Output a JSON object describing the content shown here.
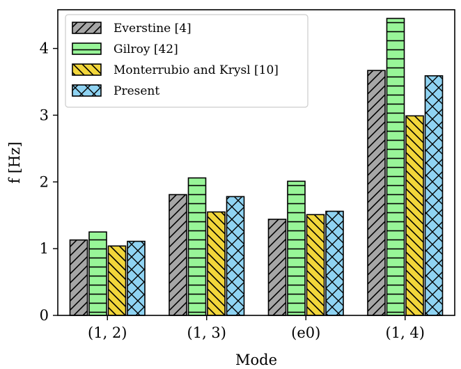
{
  "chart_data": {
    "type": "bar",
    "xlabel": "Mode",
    "ylabel": "f [Hz]",
    "categories": [
      "(1, 2)",
      "(1, 3)",
      "(e0)",
      "(1, 4)"
    ],
    "ylim": [
      0,
      4.58
    ],
    "yticks": [
      "0",
      "1",
      "2",
      "3",
      "4"
    ],
    "grid": false,
    "legend_position": "top-left",
    "series": [
      {
        "name": "Everstine [4]",
        "values": [
          1.13,
          1.81,
          1.44,
          3.67
        ],
        "color": "#a6a6a6",
        "hatch": "diagonal-up"
      },
      {
        "name": "Gilroy [42]",
        "values": [
          1.25,
          2.06,
          2.01,
          4.45
        ],
        "color": "#98f598",
        "hatch": "horizontal"
      },
      {
        "name": "Monterrubio and Krysl [10]",
        "values": [
          1.04,
          1.55,
          1.51,
          2.99
        ],
        "color": "#f2d63a",
        "hatch": "diagonal-down"
      },
      {
        "name": "Present",
        "values": [
          1.11,
          1.78,
          1.56,
          3.59
        ],
        "color": "#8fd3f2",
        "hatch": "cross"
      }
    ]
  }
}
